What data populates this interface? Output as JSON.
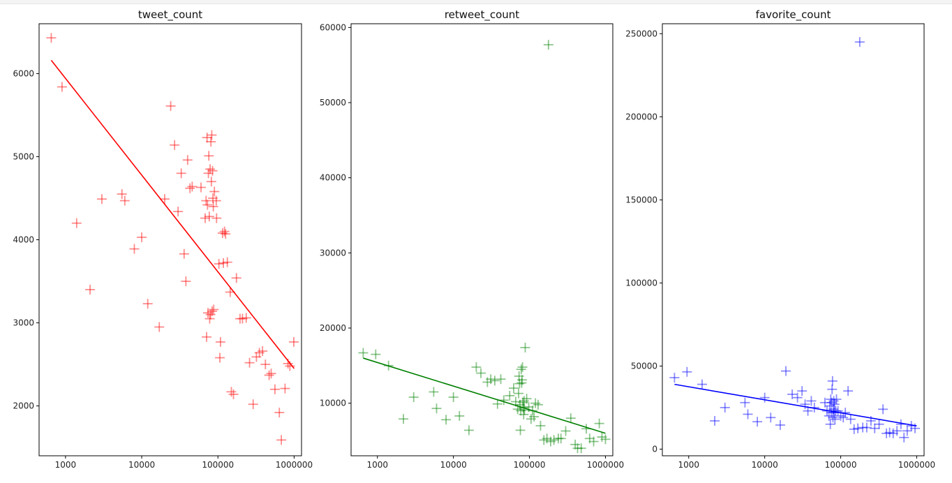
{
  "chart_data": [
    {
      "type": "scatter",
      "title": "tweet_count",
      "xscale": "log",
      "xlim": [
        450,
        1250000
      ],
      "ylim": [
        1400,
        6600
      ],
      "xticks": [
        1000,
        10000,
        100000,
        1000000
      ],
      "xtick_labels": [
        "1000",
        "10000",
        "100000",
        "1000000"
      ],
      "yticks": [
        2000,
        3000,
        4000,
        5000,
        6000
      ],
      "ytick_labels": [
        "2000",
        "3000",
        "4000",
        "5000",
        "6000"
      ],
      "color": "#ff0000",
      "marker": "+",
      "fit_line": {
        "x": [
          650,
          1000000
        ],
        "y": [
          6160,
          2450
        ]
      },
      "points": [
        [
          650,
          6430
        ],
        [
          900,
          5840
        ],
        [
          1400,
          4200
        ],
        [
          2100,
          3400
        ],
        [
          3000,
          4490
        ],
        [
          5500,
          4550
        ],
        [
          6000,
          4470
        ],
        [
          8000,
          3890
        ],
        [
          10000,
          4030
        ],
        [
          12000,
          3230
        ],
        [
          17000,
          2950
        ],
        [
          20000,
          4490
        ],
        [
          24000,
          5610
        ],
        [
          27000,
          5140
        ],
        [
          30000,
          4340
        ],
        [
          33000,
          4800
        ],
        [
          36000,
          3830
        ],
        [
          38000,
          3500
        ],
        [
          40000,
          4960
        ],
        [
          43000,
          4620
        ],
        [
          46000,
          4640
        ],
        [
          60000,
          4630
        ],
        [
          68000,
          4260
        ],
        [
          70000,
          4470
        ],
        [
          71000,
          2830
        ],
        [
          72000,
          5230
        ],
        [
          73000,
          4420
        ],
        [
          74000,
          3120
        ],
        [
          75000,
          4800
        ],
        [
          76000,
          5010
        ],
        [
          77000,
          4280
        ],
        [
          78000,
          3050
        ],
        [
          79000,
          4850
        ],
        [
          80000,
          3100
        ],
        [
          81000,
          5180
        ],
        [
          82000,
          4700
        ],
        [
          83000,
          5260
        ],
        [
          84000,
          3140
        ],
        [
          85000,
          4830
        ],
        [
          86000,
          4500
        ],
        [
          87000,
          4400
        ],
        [
          88000,
          3160
        ],
        [
          90000,
          4580
        ],
        [
          95000,
          4470
        ],
        [
          96000,
          4260
        ],
        [
          103000,
          3710
        ],
        [
          106000,
          2580
        ],
        [
          108000,
          2770
        ],
        [
          115000,
          4080
        ],
        [
          118000,
          3720
        ],
        [
          122000,
          4100
        ],
        [
          126000,
          4070
        ],
        [
          133000,
          3730
        ],
        [
          145000,
          3370
        ],
        [
          150000,
          2170
        ],
        [
          160000,
          2140
        ],
        [
          175000,
          3540
        ],
        [
          195000,
          3050
        ],
        [
          210000,
          3050
        ],
        [
          235000,
          3060
        ],
        [
          260000,
          2520
        ],
        [
          290000,
          2020
        ],
        [
          320000,
          2590
        ],
        [
          350000,
          2640
        ],
        [
          385000,
          2660
        ],
        [
          420000,
          2500
        ],
        [
          470000,
          2370
        ],
        [
          500000,
          2390
        ],
        [
          560000,
          2200
        ],
        [
          640000,
          1920
        ],
        [
          680000,
          1590
        ],
        [
          760000,
          2210
        ],
        [
          830000,
          2510
        ],
        [
          880000,
          2480
        ],
        [
          990000,
          2770
        ]
      ]
    },
    {
      "type": "scatter",
      "title": "retweet_count",
      "xscale": "log",
      "xlim": [
        450,
        1250000
      ],
      "ylim": [
        3000,
        60500
      ],
      "xticks": [
        1000,
        10000,
        100000,
        1000000
      ],
      "xtick_labels": [
        "1000",
        "10000",
        "100000",
        "1000000"
      ],
      "yticks": [
        10000,
        20000,
        30000,
        40000,
        50000,
        60000
      ],
      "ytick_labels": [
        "10000",
        "20000",
        "30000",
        "40000",
        "50000",
        "60000"
      ],
      "color": "#008000",
      "marker": "+",
      "fit_line": {
        "x": [
          650,
          1000000
        ],
        "y": [
          16000,
          6000
        ]
      },
      "points": [
        [
          650,
          16700
        ],
        [
          950,
          16500
        ],
        [
          1400,
          15000
        ],
        [
          2200,
          7900
        ],
        [
          3000,
          10800
        ],
        [
          5500,
          11500
        ],
        [
          6000,
          9300
        ],
        [
          8000,
          7800
        ],
        [
          10000,
          10800
        ],
        [
          12000,
          8300
        ],
        [
          16000,
          6400
        ],
        [
          20000,
          14800
        ],
        [
          23000,
          14000
        ],
        [
          28000,
          12800
        ],
        [
          31000,
          13200
        ],
        [
          35000,
          13000
        ],
        [
          38000,
          9900
        ],
        [
          42000,
          13200
        ],
        [
          46000,
          10400
        ],
        [
          55000,
          11000
        ],
        [
          62000,
          12000
        ],
        [
          66000,
          10200
        ],
        [
          70000,
          9200
        ],
        [
          72000,
          11300
        ],
        [
          73000,
          13600
        ],
        [
          74000,
          12600
        ],
        [
          75000,
          9800
        ],
        [
          76000,
          6400
        ],
        [
          77000,
          9000
        ],
        [
          78000,
          14500
        ],
        [
          79000,
          12700
        ],
        [
          80000,
          13100
        ],
        [
          81000,
          14800
        ],
        [
          82000,
          10100
        ],
        [
          83000,
          9400
        ],
        [
          84000,
          8500
        ],
        [
          85000,
          10300
        ],
        [
          86000,
          9100
        ],
        [
          88000,
          17400
        ],
        [
          92000,
          10600
        ],
        [
          98000,
          9500
        ],
        [
          105000,
          7900
        ],
        [
          110000,
          9000
        ],
        [
          115000,
          8200
        ],
        [
          120000,
          10000
        ],
        [
          130000,
          9800
        ],
        [
          140000,
          7000
        ],
        [
          155000,
          5100
        ],
        [
          170000,
          5300
        ],
        [
          178000,
          57700
        ],
        [
          190000,
          4900
        ],
        [
          210000,
          5100
        ],
        [
          240000,
          5300
        ],
        [
          260000,
          5300
        ],
        [
          300000,
          6300
        ],
        [
          350000,
          8000
        ],
        [
          400000,
          4500
        ],
        [
          430000,
          4000
        ],
        [
          480000,
          4000
        ],
        [
          560000,
          6600
        ],
        [
          620000,
          5300
        ],
        [
          700000,
          4900
        ],
        [
          830000,
          7300
        ],
        [
          900000,
          5500
        ],
        [
          1000000,
          5200
        ]
      ]
    },
    {
      "type": "scatter",
      "title": "favorite_count",
      "xscale": "log",
      "xlim": [
        450,
        1250000
      ],
      "ylim": [
        -4000,
        256000
      ],
      "xticks": [
        1000,
        10000,
        100000,
        1000000
      ],
      "xtick_labels": [
        "1000",
        "10000",
        "100000",
        "1000000"
      ],
      "yticks": [
        0,
        50000,
        100000,
        150000,
        200000,
        250000
      ],
      "ytick_labels": [
        "0",
        "50000",
        "100000",
        "150000",
        "200000",
        "250000"
      ],
      "color": "#0000ff",
      "marker": "+",
      "fit_line": {
        "x": [
          650,
          1000000
        ],
        "y": [
          39000,
          14000
        ]
      },
      "points": [
        [
          650,
          43000
        ],
        [
          950,
          46500
        ],
        [
          1500,
          39000
        ],
        [
          2200,
          17000
        ],
        [
          3000,
          25000
        ],
        [
          5500,
          28000
        ],
        [
          6000,
          21000
        ],
        [
          8000,
          16500
        ],
        [
          10000,
          31000
        ],
        [
          12000,
          19000
        ],
        [
          16000,
          14500
        ],
        [
          19000,
          47000
        ],
        [
          23000,
          33000
        ],
        [
          27000,
          31000
        ],
        [
          31000,
          35000
        ],
        [
          34000,
          27000
        ],
        [
          37000,
          23000
        ],
        [
          41000,
          29000
        ],
        [
          45000,
          25000
        ],
        [
          62000,
          28000
        ],
        [
          66000,
          23000
        ],
        [
          70000,
          20000
        ],
        [
          72000,
          26000
        ],
        [
          73000,
          15000
        ],
        [
          74000,
          30000
        ],
        [
          75000,
          22000
        ],
        [
          76000,
          28000
        ],
        [
          77000,
          36000
        ],
        [
          78000,
          41000
        ],
        [
          79000,
          19000
        ],
        [
          80000,
          24000
        ],
        [
          81000,
          29000
        ],
        [
          82000,
          22000
        ],
        [
          83000,
          27000
        ],
        [
          84000,
          18000
        ],
        [
          86000,
          23000
        ],
        [
          88000,
          30000
        ],
        [
          92000,
          23000
        ],
        [
          100000,
          20000
        ],
        [
          108000,
          19000
        ],
        [
          115000,
          22000
        ],
        [
          125000,
          35000
        ],
        [
          135000,
          18000
        ],
        [
          150000,
          12000
        ],
        [
          168000,
          12500
        ],
        [
          178000,
          245000
        ],
        [
          195000,
          13000
        ],
        [
          220000,
          13000
        ],
        [
          250000,
          17000
        ],
        [
          280000,
          12500
        ],
        [
          320000,
          15000
        ],
        [
          360000,
          24000
        ],
        [
          400000,
          9500
        ],
        [
          440000,
          10000
        ],
        [
          490000,
          9500
        ],
        [
          550000,
          11000
        ],
        [
          620000,
          15000
        ],
        [
          680000,
          7000
        ],
        [
          750000,
          11000
        ],
        [
          850000,
          14000
        ],
        [
          950000,
          12500
        ]
      ]
    }
  ]
}
